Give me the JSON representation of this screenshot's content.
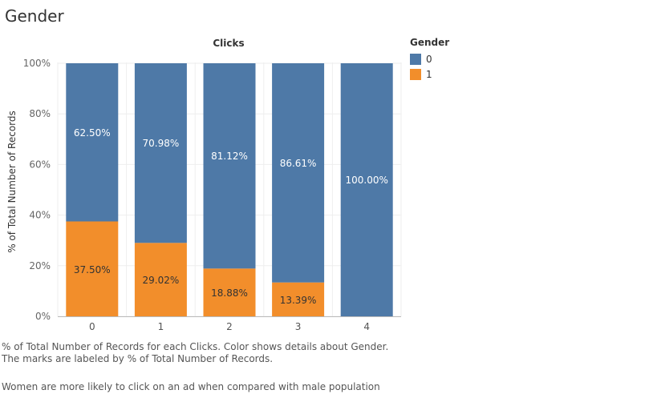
{
  "page": {
    "title": "Gender",
    "caption": "% of Total Number of Records for each Clicks.  Color shows details about Gender.  The marks are labeled by % of Total Number of Records.",
    "note": "Women are more likely to click on an ad when compared with male population"
  },
  "legend": {
    "title": "Gender",
    "items": [
      {
        "label": "0",
        "color": "#4e79a7"
      },
      {
        "label": "1",
        "color": "#f28e2b"
      }
    ]
  },
  "chart_data": {
    "type": "bar",
    "stacked": true,
    "title": "Clicks",
    "xlabel": "",
    "ylabel": "% of Total Number of Records",
    "categories": [
      "0",
      "1",
      "2",
      "3",
      "4"
    ],
    "yticks": [
      "0%",
      "20%",
      "40%",
      "60%",
      "80%",
      "100%"
    ],
    "ylim": [
      0,
      100
    ],
    "series": [
      {
        "name": "0",
        "color": "#4e79a7",
        "label_color": "#ffffff",
        "values": [
          62.5,
          70.98,
          81.12,
          86.61,
          100.0
        ],
        "labels": [
          "62.50%",
          "70.98%",
          "81.12%",
          "86.61%",
          "100.00%"
        ]
      },
      {
        "name": "1",
        "color": "#f28e2b",
        "label_color": "#333333",
        "values": [
          37.5,
          29.02,
          18.88,
          13.39,
          0
        ],
        "labels": [
          "37.50%",
          "29.02%",
          "18.88%",
          "13.39%",
          ""
        ]
      }
    ],
    "legend_position": "top-right",
    "grid": true
  }
}
